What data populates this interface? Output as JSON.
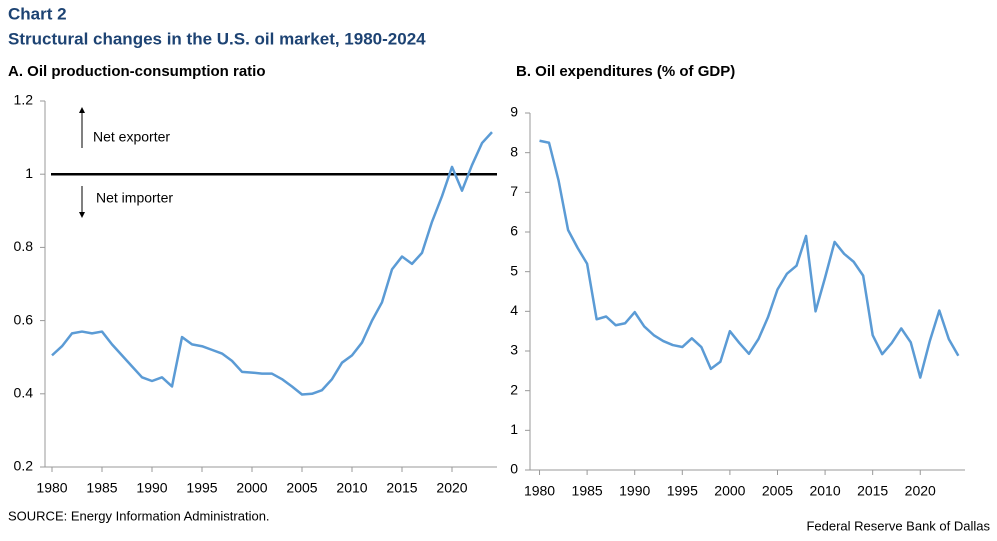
{
  "header": {
    "title": "Chart 2",
    "subtitle": "Structural changes in the U.S. oil market, 1980-2024"
  },
  "chart_data": [
    {
      "type": "line",
      "title": "A. Oil production-consumption ratio",
      "color": "#5b9bd5",
      "x": [
        1980,
        1981,
        1982,
        1983,
        1984,
        1985,
        1986,
        1987,
        1988,
        1989,
        1990,
        1991,
        1992,
        1993,
        1994,
        1995,
        1996,
        1997,
        1998,
        1999,
        2000,
        2001,
        2002,
        2003,
        2004,
        2005,
        2006,
        2007,
        2008,
        2009,
        2010,
        2011,
        2012,
        2013,
        2014,
        2015,
        2016,
        2017,
        2018,
        2019,
        2020,
        2021,
        2022,
        2023,
        2024
      ],
      "values": [
        0.505,
        0.53,
        0.565,
        0.57,
        0.565,
        0.57,
        0.535,
        0.505,
        0.475,
        0.445,
        0.435,
        0.445,
        0.42,
        0.555,
        0.535,
        0.53,
        0.52,
        0.51,
        0.49,
        0.46,
        0.458,
        0.455,
        0.455,
        0.44,
        0.42,
        0.398,
        0.4,
        0.41,
        0.44,
        0.485,
        0.505,
        0.54,
        0.6,
        0.65,
        0.74,
        0.775,
        0.755,
        0.785,
        0.87,
        0.94,
        1.02,
        0.955,
        1.025,
        1.085,
        1.115
      ],
      "xlim": [
        1979.3,
        2024.5
      ],
      "xticks": [
        1980,
        1985,
        1990,
        1995,
        2000,
        2005,
        2010,
        2015,
        2020
      ],
      "ylim": [
        0.2,
        1.2
      ],
      "yticks": [
        0.2,
        0.4,
        0.6,
        0.8,
        1,
        1.2
      ],
      "hline": 1,
      "annotations": [
        "Net exporter",
        "Net importer"
      ]
    },
    {
      "type": "line",
      "title": "B. Oil expenditures (% of GDP)",
      "color": "#5b9bd5",
      "x": [
        1980,
        1981,
        1982,
        1983,
        1984,
        1985,
        1986,
        1987,
        1988,
        1989,
        1990,
        1991,
        1992,
        1993,
        1994,
        1995,
        1996,
        1997,
        1998,
        1999,
        2000,
        2001,
        2002,
        2003,
        2004,
        2005,
        2006,
        2007,
        2008,
        2009,
        2010,
        2011,
        2012,
        2013,
        2014,
        2015,
        2016,
        2017,
        2018,
        2019,
        2020,
        2021,
        2022,
        2023,
        2024
      ],
      "values": [
        8.3,
        8.25,
        7.3,
        6.05,
        5.6,
        5.2,
        3.8,
        3.87,
        3.65,
        3.7,
        3.98,
        3.62,
        3.4,
        3.25,
        3.15,
        3.1,
        3.32,
        3.1,
        2.55,
        2.73,
        3.5,
        3.2,
        2.93,
        3.3,
        3.85,
        4.55,
        4.95,
        5.15,
        5.9,
        4.0,
        4.85,
        5.75,
        5.45,
        5.25,
        4.9,
        3.4,
        2.92,
        3.2,
        3.57,
        3.22,
        2.33,
        3.25,
        4.02,
        3.3,
        2.88
      ],
      "xlim": [
        1979,
        2024.7
      ],
      "xticks": [
        1980,
        1985,
        1990,
        1995,
        2000,
        2005,
        2010,
        2015,
        2020
      ],
      "ylim": [
        0,
        9
      ],
      "yticks": [
        0,
        1,
        2,
        3,
        4,
        5,
        6,
        7,
        8,
        9
      ]
    }
  ],
  "footer": {
    "source": "SOURCE: Energy Information Administration.",
    "credit": "Federal Reserve Bank of Dallas"
  }
}
